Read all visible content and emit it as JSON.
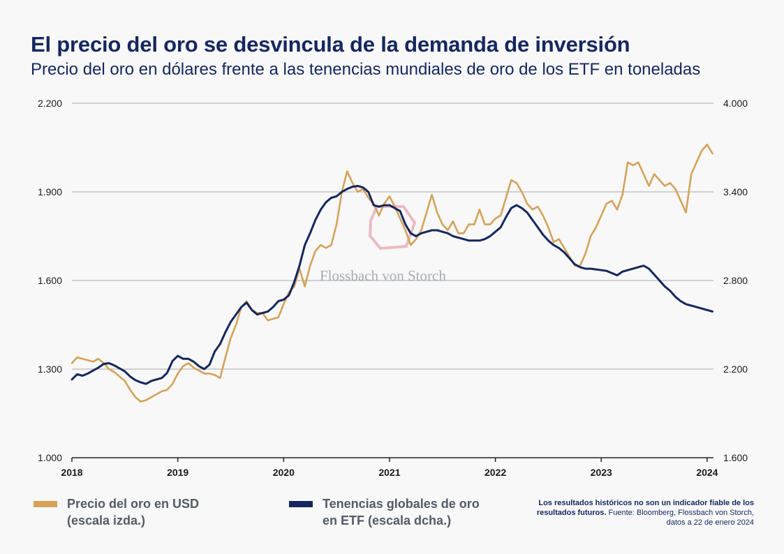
{
  "title": "El precio del oro se desvincula de la demanda de inversión",
  "subtitle": "Precio del oro en dólares frente a las tenencias mundiales de oro de los ETF en toneladas",
  "watermark": "Flossbach von Storch",
  "colors": {
    "gold": "#d4a25a",
    "navy": "#13275e",
    "grid": "#a9a9a9",
    "text": "#14275f",
    "legend_text": "#555a64",
    "watermark_logo": "#e3a7b0"
  },
  "legend": [
    {
      "line1": "Precio del oro en USD",
      "line2": "(escala izda.)",
      "color": "#d4a25a"
    },
    {
      "line1": "Tenencias globales de oro",
      "line2": "en ETF (escala dcha.)",
      "color": "#13275e"
    }
  ],
  "note": {
    "bold": "Los resultados históricos no son un indicador fiable de los resultados futuros.",
    "text": "Fuente: Bloomberg, Flossbach von Storch, datos a 22 de enero 2024"
  },
  "chart_data": {
    "type": "line",
    "x_range": [
      2018.0,
      2024.06
    ],
    "x_ticks": [
      "2018",
      "2019",
      "2020",
      "2021",
      "2022",
      "2023",
      "2024"
    ],
    "y_left": {
      "label": "Precio del oro en USD",
      "range": [
        1000,
        2200
      ],
      "ticks": [
        "1.000",
        "1.300",
        "1.600",
        "1.900",
        "2.200"
      ],
      "tick_values": [
        1000,
        1300,
        1600,
        1900,
        2200
      ]
    },
    "y_right": {
      "label": "Tenencias globales de oro en ETF (toneladas)",
      "range": [
        1600,
        4000
      ],
      "ticks": [
        "1.600",
        "2.200",
        "2.800",
        "3.400",
        "4.000"
      ],
      "tick_values": [
        1600,
        2200,
        2800,
        3400,
        4000
      ]
    },
    "grid": true,
    "series": [
      {
        "name": "Precio del oro en USD",
        "axis": "left",
        "x": [
          2018.0,
          2018.05,
          2018.1,
          2018.15,
          2018.2,
          2018.25,
          2018.3,
          2018.35,
          2018.4,
          2018.45,
          2018.5,
          2018.55,
          2018.6,
          2018.65,
          2018.7,
          2018.75,
          2018.8,
          2018.85,
          2018.9,
          2018.95,
          2019.0,
          2019.05,
          2019.1,
          2019.15,
          2019.2,
          2019.25,
          2019.3,
          2019.35,
          2019.4,
          2019.45,
          2019.5,
          2019.55,
          2019.6,
          2019.65,
          2019.7,
          2019.75,
          2019.8,
          2019.85,
          2019.9,
          2019.95,
          2020.0,
          2020.05,
          2020.1,
          2020.15,
          2020.2,
          2020.25,
          2020.3,
          2020.35,
          2020.4,
          2020.45,
          2020.5,
          2020.55,
          2020.6,
          2020.65,
          2020.7,
          2020.75,
          2020.8,
          2020.85,
          2020.9,
          2020.95,
          2021.0,
          2021.05,
          2021.1,
          2021.15,
          2021.2,
          2021.25,
          2021.3,
          2021.35,
          2021.4,
          2021.45,
          2021.5,
          2021.55,
          2021.6,
          2021.65,
          2021.7,
          2021.75,
          2021.8,
          2021.85,
          2021.9,
          2021.95,
          2022.0,
          2022.05,
          2022.1,
          2022.15,
          2022.2,
          2022.25,
          2022.3,
          2022.35,
          2022.4,
          2022.45,
          2022.5,
          2022.55,
          2022.6,
          2022.65,
          2022.7,
          2022.75,
          2022.8,
          2022.85,
          2022.9,
          2022.95,
          2023.0,
          2023.05,
          2023.1,
          2023.15,
          2023.2,
          2023.25,
          2023.3,
          2023.35,
          2023.4,
          2023.45,
          2023.5,
          2023.55,
          2023.6,
          2023.65,
          2023.7,
          2023.75,
          2023.8,
          2023.85,
          2023.9,
          2023.95,
          2024.0,
          2024.05
        ],
        "values": [
          1320,
          1340,
          1335,
          1330,
          1325,
          1335,
          1320,
          1300,
          1290,
          1275,
          1260,
          1230,
          1205,
          1190,
          1195,
          1205,
          1215,
          1225,
          1230,
          1250,
          1285,
          1310,
          1320,
          1305,
          1295,
          1285,
          1285,
          1280,
          1270,
          1340,
          1405,
          1450,
          1510,
          1530,
          1500,
          1490,
          1490,
          1465,
          1470,
          1475,
          1520,
          1560,
          1580,
          1640,
          1580,
          1650,
          1700,
          1720,
          1710,
          1720,
          1790,
          1900,
          1970,
          1930,
          1900,
          1910,
          1880,
          1860,
          1820,
          1860,
          1885,
          1850,
          1810,
          1770,
          1720,
          1740,
          1770,
          1830,
          1890,
          1830,
          1790,
          1770,
          1800,
          1760,
          1760,
          1790,
          1790,
          1840,
          1790,
          1790,
          1810,
          1820,
          1880,
          1940,
          1930,
          1900,
          1860,
          1840,
          1850,
          1820,
          1780,
          1730,
          1740,
          1710,
          1680,
          1650,
          1650,
          1690,
          1750,
          1780,
          1820,
          1860,
          1870,
          1840,
          1890,
          2000,
          1990,
          2000,
          1960,
          1920,
          1960,
          1940,
          1920,
          1930,
          1910,
          1870,
          1830,
          1960,
          2000,
          2040,
          2060,
          2030
        ]
      },
      {
        "name": "Tenencias globales de oro en ETF",
        "axis": "right",
        "x": [
          2018.0,
          2018.05,
          2018.1,
          2018.15,
          2018.2,
          2018.25,
          2018.3,
          2018.35,
          2018.4,
          2018.45,
          2018.5,
          2018.55,
          2018.6,
          2018.65,
          2018.7,
          2018.75,
          2018.8,
          2018.85,
          2018.9,
          2018.95,
          2019.0,
          2019.05,
          2019.1,
          2019.15,
          2019.2,
          2019.25,
          2019.3,
          2019.35,
          2019.4,
          2019.45,
          2019.5,
          2019.55,
          2019.6,
          2019.65,
          2019.7,
          2019.75,
          2019.8,
          2019.85,
          2019.9,
          2019.95,
          2020.0,
          2020.05,
          2020.1,
          2020.15,
          2020.2,
          2020.25,
          2020.3,
          2020.35,
          2020.4,
          2020.45,
          2020.5,
          2020.55,
          2020.6,
          2020.65,
          2020.7,
          2020.75,
          2020.8,
          2020.85,
          2020.9,
          2020.95,
          2021.0,
          2021.05,
          2021.1,
          2021.15,
          2021.2,
          2021.25,
          2021.3,
          2021.35,
          2021.4,
          2021.45,
          2021.5,
          2021.55,
          2021.6,
          2021.65,
          2021.7,
          2021.75,
          2021.8,
          2021.85,
          2021.9,
          2021.95,
          2022.0,
          2022.05,
          2022.1,
          2022.15,
          2022.2,
          2022.25,
          2022.3,
          2022.35,
          2022.4,
          2022.45,
          2022.5,
          2022.55,
          2022.6,
          2022.65,
          2022.7,
          2022.75,
          2022.8,
          2022.85,
          2022.9,
          2022.95,
          2023.0,
          2023.05,
          2023.1,
          2023.15,
          2023.2,
          2023.25,
          2023.3,
          2023.35,
          2023.4,
          2023.45,
          2023.5,
          2023.55,
          2023.6,
          2023.65,
          2023.7,
          2023.75,
          2023.8,
          2023.85,
          2023.9,
          2023.95,
          2024.0,
          2024.05
        ],
        "values": [
          2130,
          2165,
          2155,
          2170,
          2190,
          2210,
          2235,
          2240,
          2225,
          2205,
          2185,
          2150,
          2125,
          2110,
          2100,
          2120,
          2130,
          2140,
          2175,
          2255,
          2290,
          2270,
          2270,
          2250,
          2220,
          2200,
          2230,
          2320,
          2370,
          2450,
          2520,
          2570,
          2620,
          2650,
          2600,
          2570,
          2580,
          2590,
          2620,
          2660,
          2670,
          2700,
          2790,
          2900,
          3040,
          3120,
          3210,
          3280,
          3330,
          3360,
          3370,
          3400,
          3420,
          3435,
          3440,
          3430,
          3400,
          3310,
          3300,
          3310,
          3310,
          3290,
          3270,
          3180,
          3120,
          3100,
          3120,
          3130,
          3140,
          3140,
          3130,
          3120,
          3100,
          3090,
          3080,
          3070,
          3070,
          3070,
          3080,
          3100,
          3130,
          3160,
          3230,
          3290,
          3310,
          3290,
          3260,
          3210,
          3160,
          3110,
          3070,
          3040,
          3020,
          2990,
          2950,
          2910,
          2890,
          2880,
          2880,
          2875,
          2870,
          2865,
          2850,
          2835,
          2860,
          2870,
          2880,
          2890,
          2900,
          2880,
          2840,
          2800,
          2760,
          2730,
          2690,
          2660,
          2640,
          2630,
          2620,
          2610,
          2600,
          2590
        ]
      }
    ]
  }
}
